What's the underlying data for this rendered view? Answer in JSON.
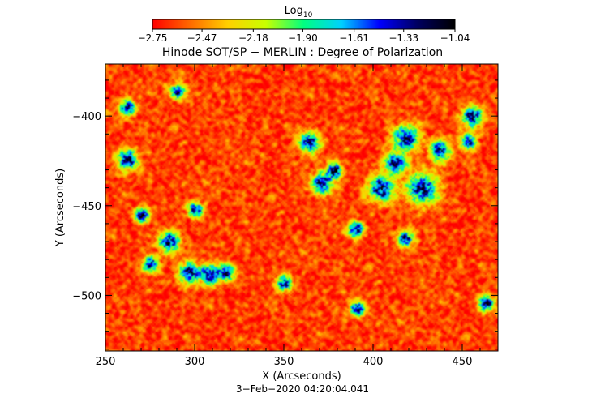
{
  "chart_data": {
    "type": "heatmap",
    "title": "Hinode SOT/SP − MERLIN : Degree of Polarization",
    "xlabel": "X (Arcseconds)",
    "ylabel": "Y (Arcseconds)",
    "timestamp": "3−Feb−2020 04:20:04.041",
    "xlim": [
      250,
      470
    ],
    "ylim": [
      -531,
      -371
    ],
    "x_ticks": [
      250,
      300,
      350,
      400,
      450
    ],
    "x_tick_labels": [
      "250",
      "300",
      "350",
      "400",
      "450"
    ],
    "y_ticks": [
      -400,
      -450,
      -500
    ],
    "y_tick_labels": [
      "−400",
      "−450",
      "−500"
    ],
    "colorbar": {
      "label_base": "Log",
      "label_sub": "10",
      "min": -2.75,
      "max": -1.04,
      "tick_values": [
        -2.75,
        -2.47,
        -2.18,
        -1.9,
        -1.61,
        -1.33,
        -1.04
      ],
      "tick_labels": [
        "−2.75",
        "−2.47",
        "−2.18",
        "−1.90",
        "−1.61",
        "−1.33",
        "−1.04"
      ],
      "colormap": [
        "#ff0000",
        "#ff6a00",
        "#ffd000",
        "#c8ff00",
        "#00ff80",
        "#00d0ff",
        "#0000ff",
        "#000060",
        "#000000"
      ]
    },
    "map_values": {
      "background_level": -2.62,
      "network_features": [
        {
          "x": 262,
          "y": -424,
          "r": 4
        },
        {
          "x": 270,
          "y": -455,
          "r": 3
        },
        {
          "x": 275,
          "y": -482,
          "r": 3
        },
        {
          "x": 285,
          "y": -470,
          "r": 4
        },
        {
          "x": 296,
          "y": -487,
          "r": 4
        },
        {
          "x": 308,
          "y": -488,
          "r": 4
        },
        {
          "x": 318,
          "y": -487,
          "r": 3
        },
        {
          "x": 300,
          "y": -452,
          "r": 3
        },
        {
          "x": 364,
          "y": -414,
          "r": 4
        },
        {
          "x": 371,
          "y": -437,
          "r": 4
        },
        {
          "x": 378,
          "y": -430,
          "r": 3
        },
        {
          "x": 390,
          "y": -463,
          "r": 3
        },
        {
          "x": 391,
          "y": -507,
          "r": 3
        },
        {
          "x": 404,
          "y": -440,
          "r": 5
        },
        {
          "x": 412,
          "y": -426,
          "r": 4
        },
        {
          "x": 418,
          "y": -412,
          "r": 5
        },
        {
          "x": 427,
          "y": -440,
          "r": 6
        },
        {
          "x": 437,
          "y": -419,
          "r": 4
        },
        {
          "x": 453,
          "y": -414,
          "r": 3
        },
        {
          "x": 455,
          "y": -400,
          "r": 4
        },
        {
          "x": 463,
          "y": -504,
          "r": 3
        },
        {
          "x": 262,
          "y": -395,
          "r": 3
        },
        {
          "x": 290,
          "y": -386,
          "r": 3
        },
        {
          "x": 350,
          "y": -493,
          "r": 3
        },
        {
          "x": 418,
          "y": -468,
          "r": 3
        }
      ]
    }
  }
}
